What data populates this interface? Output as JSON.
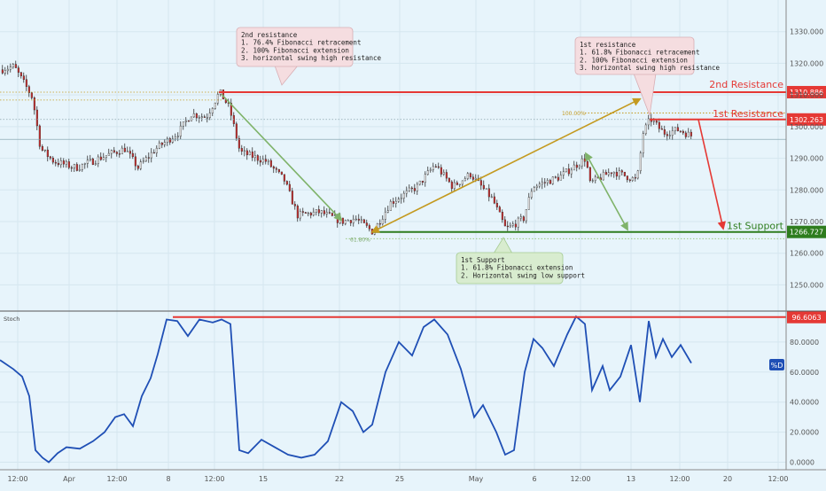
{
  "chart_data": [
    {
      "type": "candlestick",
      "title": "",
      "xlabel": "",
      "ylabel": "",
      "ylim": [
        1242,
        1340
      ],
      "grid": true,
      "y_ticks": [
        "1330.000",
        "1320.000",
        "1310.000",
        "1300.000",
        "1290.000",
        "1280.000",
        "1270.000",
        "1260.000",
        "1250.000"
      ],
      "y_tick_values": [
        1330,
        1320,
        1310,
        1300,
        1290,
        1280,
        1270,
        1260,
        1250
      ],
      "x_ticks": [
        "12:00",
        "Apr",
        "12:00",
        "8",
        "12:00",
        "15",
        "22",
        "25",
        "May",
        "6",
        "12:00",
        "13",
        "12:00",
        "20",
        "12:00"
      ],
      "approx_price_path": [
        {
          "t": 0,
          "price": 1318
        },
        {
          "t": 15,
          "price": 1319
        },
        {
          "t": 30,
          "price": 1312
        },
        {
          "t": 36,
          "price": 1309
        },
        {
          "t": 45,
          "price": 1293
        },
        {
          "t": 60,
          "price": 1289
        },
        {
          "t": 85,
          "price": 1287
        },
        {
          "t": 120,
          "price": 1291
        },
        {
          "t": 140,
          "price": 1293
        },
        {
          "t": 155,
          "price": 1287
        },
        {
          "t": 175,
          "price": 1293
        },
        {
          "t": 200,
          "price": 1298
        },
        {
          "t": 215,
          "price": 1304
        },
        {
          "t": 232,
          "price": 1303
        },
        {
          "t": 247,
          "price": 1310.9
        },
        {
          "t": 258,
          "price": 1306
        },
        {
          "t": 270,
          "price": 1292
        },
        {
          "t": 300,
          "price": 1289
        },
        {
          "t": 320,
          "price": 1283
        },
        {
          "t": 335,
          "price": 1272
        },
        {
          "t": 360,
          "price": 1273
        },
        {
          "t": 385,
          "price": 1270
        },
        {
          "t": 400,
          "price": 1271
        },
        {
          "t": 420,
          "price": 1266.7
        },
        {
          "t": 440,
          "price": 1276
        },
        {
          "t": 470,
          "price": 1281
        },
        {
          "t": 490,
          "price": 1288
        },
        {
          "t": 510,
          "price": 1281
        },
        {
          "t": 530,
          "price": 1285
        },
        {
          "t": 555,
          "price": 1277
        },
        {
          "t": 570,
          "price": 1267.5
        },
        {
          "t": 590,
          "price": 1271
        },
        {
          "t": 600,
          "price": 1281
        },
        {
          "t": 630,
          "price": 1284
        },
        {
          "t": 660,
          "price": 1290
        },
        {
          "t": 665,
          "price": 1282
        },
        {
          "t": 690,
          "price": 1286
        },
        {
          "t": 718,
          "price": 1283
        },
        {
          "t": 725,
          "price": 1298
        },
        {
          "t": 733,
          "price": 1302.5
        },
        {
          "t": 748,
          "price": 1298
        },
        {
          "t": 765,
          "price": 1299
        },
        {
          "t": 780,
          "price": 1297
        }
      ],
      "resistance_2": {
        "label": "2nd Resistance",
        "value": 1310.886,
        "value_label": "1310.886"
      },
      "resistance_1": {
        "label": "1st Resistance",
        "value": 1302.263,
        "value_label": "1302.263"
      },
      "support_1": {
        "label": "1st Support",
        "value": 1266.727,
        "value_label": "1266.727"
      },
      "current_price_level": 1296,
      "fib_labels": {
        "ext_100": "100.00%",
        "ret_618": "61.80%"
      },
      "annotations": [
        {
          "id": "r2",
          "lines": [
            "2nd resistance",
            "1. 76.4% Fibonacci retracement",
            "2. 100% Fibonacci extension",
            "3. horizontal swing high resistance"
          ]
        },
        {
          "id": "r1",
          "lines": [
            "1st resistance",
            "1. 61.8% Fibonacci retracement",
            "2. 100% Fibonacci extension",
            "3. horizontal swing high resistance"
          ]
        },
        {
          "id": "s1",
          "lines": [
            "1st Support",
            "1. 61.8% Fibonacci extension",
            "2. Horizontal swing low support"
          ]
        }
      ]
    },
    {
      "type": "line",
      "title": "Stoch",
      "ylim": [
        -5,
        100
      ],
      "y_ticks": [
        "80.0000",
        "60.0000",
        "40.0000",
        "20.0000",
        "0.0000"
      ],
      "y_tick_values": [
        80,
        60,
        40,
        20,
        0
      ],
      "level": {
        "value": 96.6063,
        "label": "96.6063"
      },
      "series_tag": "%D",
      "series": [
        {
          "name": "%D",
          "points": [
            [
              0,
              68
            ],
            [
              15,
              62
            ],
            [
              25,
              57
            ],
            [
              33,
              44
            ],
            [
              40,
              8
            ],
            [
              48,
              3
            ],
            [
              55,
              0
            ],
            [
              65,
              6
            ],
            [
              75,
              10
            ],
            [
              90,
              9
            ],
            [
              105,
              14
            ],
            [
              118,
              20
            ],
            [
              130,
              30
            ],
            [
              140,
              32
            ],
            [
              150,
              24
            ],
            [
              160,
              44
            ],
            [
              170,
              56
            ],
            [
              178,
              72
            ],
            [
              188,
              95
            ],
            [
              200,
              94
            ],
            [
              212,
              84
            ],
            [
              225,
              95
            ],
            [
              240,
              93
            ],
            [
              250,
              95
            ],
            [
              260,
              92
            ],
            [
              270,
              8
            ],
            [
              280,
              6
            ],
            [
              295,
              15
            ],
            [
              310,
              10
            ],
            [
              325,
              5
            ],
            [
              340,
              3
            ],
            [
              355,
              5
            ],
            [
              370,
              14
            ],
            [
              385,
              40
            ],
            [
              398,
              34
            ],
            [
              410,
              20
            ],
            [
              420,
              25
            ],
            [
              435,
              60
            ],
            [
              450,
              80
            ],
            [
              465,
              71
            ],
            [
              478,
              90
            ],
            [
              490,
              95
            ],
            [
              505,
              85
            ],
            [
              520,
              62
            ],
            [
              535,
              30
            ],
            [
              545,
              38
            ],
            [
              560,
              20
            ],
            [
              570,
              5
            ],
            [
              580,
              8
            ],
            [
              592,
              60
            ],
            [
              602,
              82
            ],
            [
              612,
              76
            ],
            [
              625,
              64
            ],
            [
              640,
              85
            ],
            [
              650,
              97
            ],
            [
              660,
              92
            ],
            [
              668,
              48
            ],
            [
              680,
              64
            ],
            [
              688,
              48
            ],
            [
              700,
              57
            ],
            [
              712,
              78
            ],
            [
              722,
              40
            ],
            [
              732,
              94
            ],
            [
              740,
              70
            ],
            [
              748,
              82
            ],
            [
              758,
              70
            ],
            [
              768,
              78
            ],
            [
              780,
              66
            ]
          ]
        }
      ]
    }
  ]
}
